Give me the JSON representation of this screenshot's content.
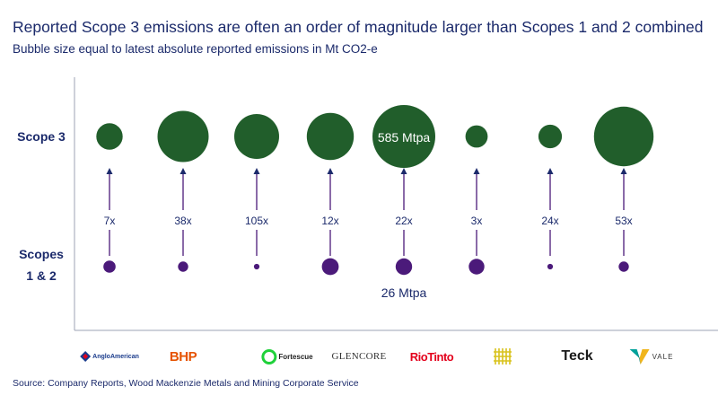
{
  "title": "Reported  Scope 3 emissions are often an order of magnitude larger than Scopes 1 and 2 combined",
  "subtitle": "Bubble size equal to latest absolute reported emissions in Mt CO2-e",
  "source": "Source: Company Reports, Wood Mackenzie Metals and Mining Corporate Service",
  "chart_data": {
    "type": "scatter",
    "rows": [
      "Scope 3",
      "Scopes\n1 & 2"
    ],
    "companies": [
      "Anglo American",
      "BHP",
      "Fortescue",
      "Glencore",
      "Rio Tinto",
      "Saudi Arabian Mining (Ma'aden)",
      "Teck",
      "Vale"
    ],
    "multipliers": [
      "7x",
      "38x",
      "105x",
      "12x",
      "22x",
      "3x",
      "24x",
      "53x"
    ],
    "scope3_mtpa": [
      103,
      389,
      299,
      329,
      585,
      74,
      82,
      525
    ],
    "scope12_mtpa": [
      14,
      10,
      3,
      27,
      26,
      23,
      3,
      10
    ],
    "annotations": {
      "scope3_label": "585 Mtpa",
      "scope12_label": "26 Mtpa"
    },
    "colors": {
      "scope3": "#215e2b",
      "scope12": "#4b1a7a",
      "text": "#1b2a6b",
      "axis": "#9ea3b5"
    }
  },
  "logos": {
    "anglo": "AngloAmerican",
    "bhp": "BHP",
    "fortescue": "Fortescue",
    "glencore": "GLENCORE",
    "riotinto": "RioTinto",
    "teck": "Teck",
    "vale": "VALE"
  }
}
